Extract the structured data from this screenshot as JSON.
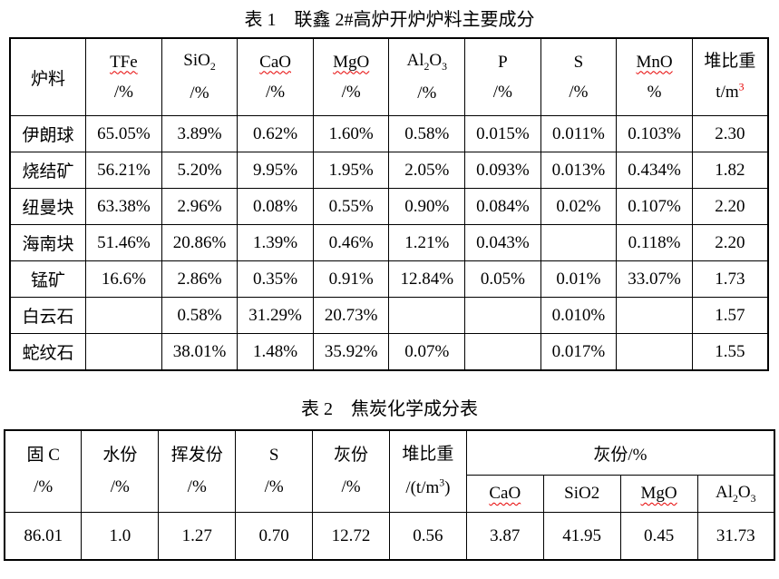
{
  "colors": {
    "accent_red": "#e60000",
    "border": "#000000",
    "background": "#ffffff",
    "text": "#000000"
  },
  "table1": {
    "title": "表 1　联鑫 2#高炉开炉炉料主要成分",
    "corner_header": {
      "label": "炉料"
    },
    "columns": [
      {
        "line1": "TFe",
        "line2": "/%",
        "misspell_underline": true,
        "sup_red": false
      },
      {
        "line1": "SiO~2~",
        "line2": "/%",
        "misspell_underline": false,
        "sup_red": false
      },
      {
        "line1": "CaO",
        "line2": "/%",
        "misspell_underline": true,
        "sup_red": false
      },
      {
        "line1": "MgO",
        "line2": "/%",
        "misspell_underline": true,
        "sup_red": false
      },
      {
        "line1": "Al~2~O~3~",
        "line2": "/%",
        "misspell_underline": false,
        "sup_red": false
      },
      {
        "line1": "P",
        "line2": "/%",
        "misspell_underline": false,
        "sup_red": false
      },
      {
        "line1": "S",
        "line2": "/%",
        "misspell_underline": false,
        "sup_red": false
      },
      {
        "line1": "MnO",
        "line2": "%",
        "misspell_underline": true,
        "sup_red": false
      },
      {
        "line1": "堆比重",
        "line2": "t/m^3^",
        "misspell_underline": false,
        "sup_red": true
      }
    ],
    "rows": [
      {
        "label": "伊朗球",
        "values": [
          "65.05%",
          "3.89%",
          "0.62%",
          "1.60%",
          "0.58%",
          "0.015%",
          "0.011%",
          "0.103%",
          "2.30"
        ]
      },
      {
        "label": "烧结矿",
        "values": [
          "56.21%",
          "5.20%",
          "9.95%",
          "1.95%",
          "2.05%",
          "0.093%",
          "0.013%",
          "0.434%",
          "1.82"
        ]
      },
      {
        "label": "纽曼块",
        "values": [
          "63.38%",
          "2.96%",
          "0.08%",
          "0.55%",
          "0.90%",
          "0.084%",
          "0.02%",
          "0.107%",
          "2.20"
        ]
      },
      {
        "label": "海南块",
        "values": [
          "51.46%",
          "20.86%",
          "1.39%",
          "0.46%",
          "1.21%",
          "0.043%",
          "",
          "0.118%",
          "2.20"
        ]
      },
      {
        "label": "锰矿",
        "values": [
          "16.6%",
          "2.86%",
          "0.35%",
          "0.91%",
          "12.84%",
          "0.05%",
          "0.01%",
          "33.07%",
          "1.73"
        ]
      },
      {
        "label": "白云石",
        "values": [
          "",
          "0.58%",
          "31.29%",
          "20.73%",
          "",
          "",
          "0.010%",
          "",
          "1.57"
        ]
      },
      {
        "label": "蛇纹石",
        "values": [
          "",
          "38.01%",
          "1.48%",
          "35.92%",
          "0.07%",
          "",
          "0.017%",
          "",
          "1.55"
        ]
      }
    ]
  },
  "table2": {
    "title": "表 2　焦炭化学成分表",
    "main_columns": [
      {
        "line1": "固 C",
        "line2": "/%",
        "sup_red": false
      },
      {
        "line1": "水份",
        "line2": "/%",
        "sup_red": false
      },
      {
        "line1": "挥发份",
        "line2": "/%",
        "sup_red": false
      },
      {
        "line1": "S",
        "line2": "/%",
        "sup_red": false
      },
      {
        "line1": "灰份",
        "line2": "/%",
        "sup_red": false
      },
      {
        "line1": "堆比重",
        "line2": "/(t/m^3^)",
        "sup_red": false
      }
    ],
    "ash_group": {
      "label": "灰份/%",
      "sub_columns": [
        {
          "label": "CaO",
          "misspell_underline": true
        },
        {
          "label": "SiO2",
          "misspell_underline": false
        },
        {
          "label": "MgO",
          "misspell_underline": true
        },
        {
          "label": "Al~2~O~3~",
          "misspell_underline": false
        }
      ]
    },
    "values": [
      "86.01",
      "1.0",
      "1.27",
      "0.70",
      "12.72",
      "0.56",
      "3.87",
      "41.95",
      "0.45",
      "31.73"
    ]
  }
}
